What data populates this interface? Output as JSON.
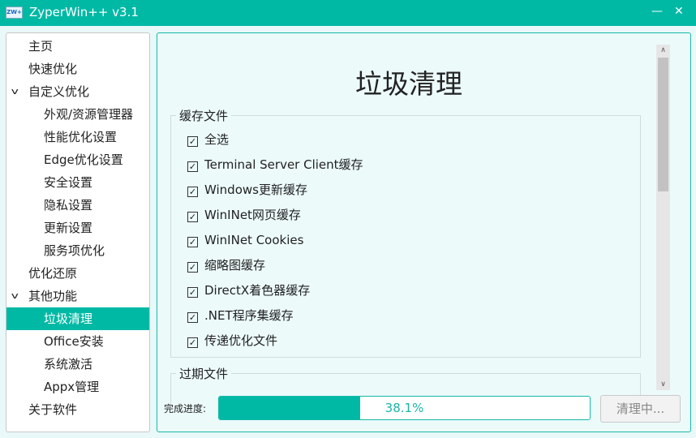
{
  "window": {
    "title": "ZyperWin++ v3.1",
    "logo": "ZW+",
    "minimize_icon": "minimize-icon",
    "close_icon": "close-icon"
  },
  "sidebar": {
    "items": [
      {
        "label": "主页",
        "level": 0
      },
      {
        "label": "快速优化",
        "level": 0
      },
      {
        "label": "自定义优化",
        "level": 0,
        "expanded": true
      },
      {
        "label": "外观/资源管理器",
        "level": 1
      },
      {
        "label": "性能优化设置",
        "level": 1
      },
      {
        "label": "Edge优化设置",
        "level": 1
      },
      {
        "label": "安全设置",
        "level": 1
      },
      {
        "label": "隐私设置",
        "level": 1
      },
      {
        "label": "更新设置",
        "level": 1
      },
      {
        "label": "服务项优化",
        "level": 1
      },
      {
        "label": "优化还原",
        "level": 0
      },
      {
        "label": "其他功能",
        "level": 0,
        "expanded": true
      },
      {
        "label": "垃圾清理",
        "level": 1,
        "selected": true
      },
      {
        "label": "Office安装",
        "level": 1
      },
      {
        "label": "系统激活",
        "level": 1
      },
      {
        "label": "Appx管理",
        "level": 1
      },
      {
        "label": "关于软件",
        "level": 0
      }
    ]
  },
  "main": {
    "title": "垃圾清理",
    "groups": [
      {
        "label": "缓存文件",
        "items": [
          {
            "label": "全选",
            "checked": true
          },
          {
            "label": "Terminal Server Client缓存",
            "checked": true
          },
          {
            "label": "Windows更新缓存",
            "checked": true
          },
          {
            "label": "WinINet网页缓存",
            "checked": true
          },
          {
            "label": "WinINet Cookies",
            "checked": true
          },
          {
            "label": "缩略图缓存",
            "checked": true
          },
          {
            "label": "DirectX着色器缓存",
            "checked": true
          },
          {
            "label": ".NET程序集缓存",
            "checked": true
          },
          {
            "label": "传递优化文件",
            "checked": true
          }
        ]
      },
      {
        "label": "过期文件",
        "items": []
      }
    ],
    "progress": {
      "label": "完成进度:",
      "value": 38.1,
      "text": "38.1%"
    },
    "clean_button": "清理中..."
  },
  "colors": {
    "accent": "#00b9a5",
    "background": "#e9f8f8"
  }
}
